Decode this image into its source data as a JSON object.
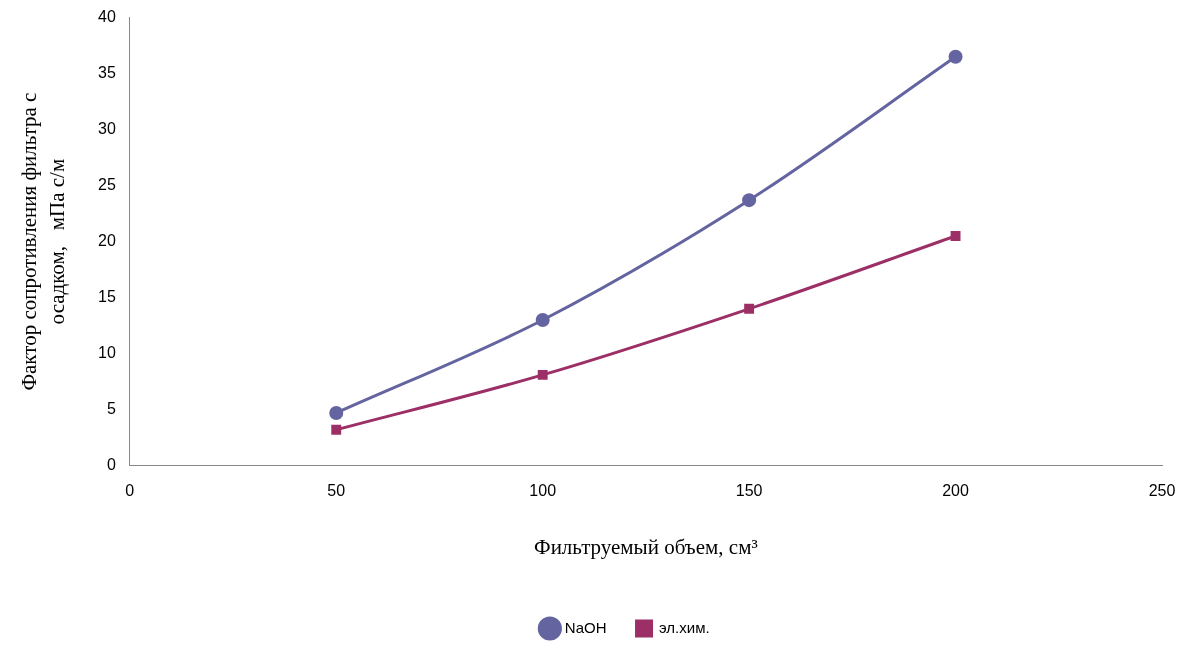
{
  "chart_data": {
    "type": "line",
    "xlabel": "Фильтруемый объем, см³",
    "ylabel": "Фактор сопротивления фильтра с осадком,   мПа с/м",
    "x": [
      50,
      100,
      150,
      200
    ],
    "series": [
      {
        "name": "NaOH",
        "color": "#6464a0",
        "marker": "circle",
        "values": [
          4.7,
          13.0,
          23.7,
          36.5
        ]
      },
      {
        "name": "эл.хим.",
        "color": "#9c2f66",
        "marker": "square",
        "values": [
          3.2,
          8.1,
          14.0,
          20.5
        ]
      }
    ],
    "xlim": [
      0,
      250
    ],
    "xticks": [
      0,
      50,
      100,
      150,
      200,
      250
    ],
    "ylim": [
      0,
      40
    ],
    "yticks": [
      0,
      5,
      10,
      15,
      20,
      25,
      30,
      35,
      40
    ],
    "grid": false,
    "legend": "bottom",
    "line_style": "solid"
  }
}
